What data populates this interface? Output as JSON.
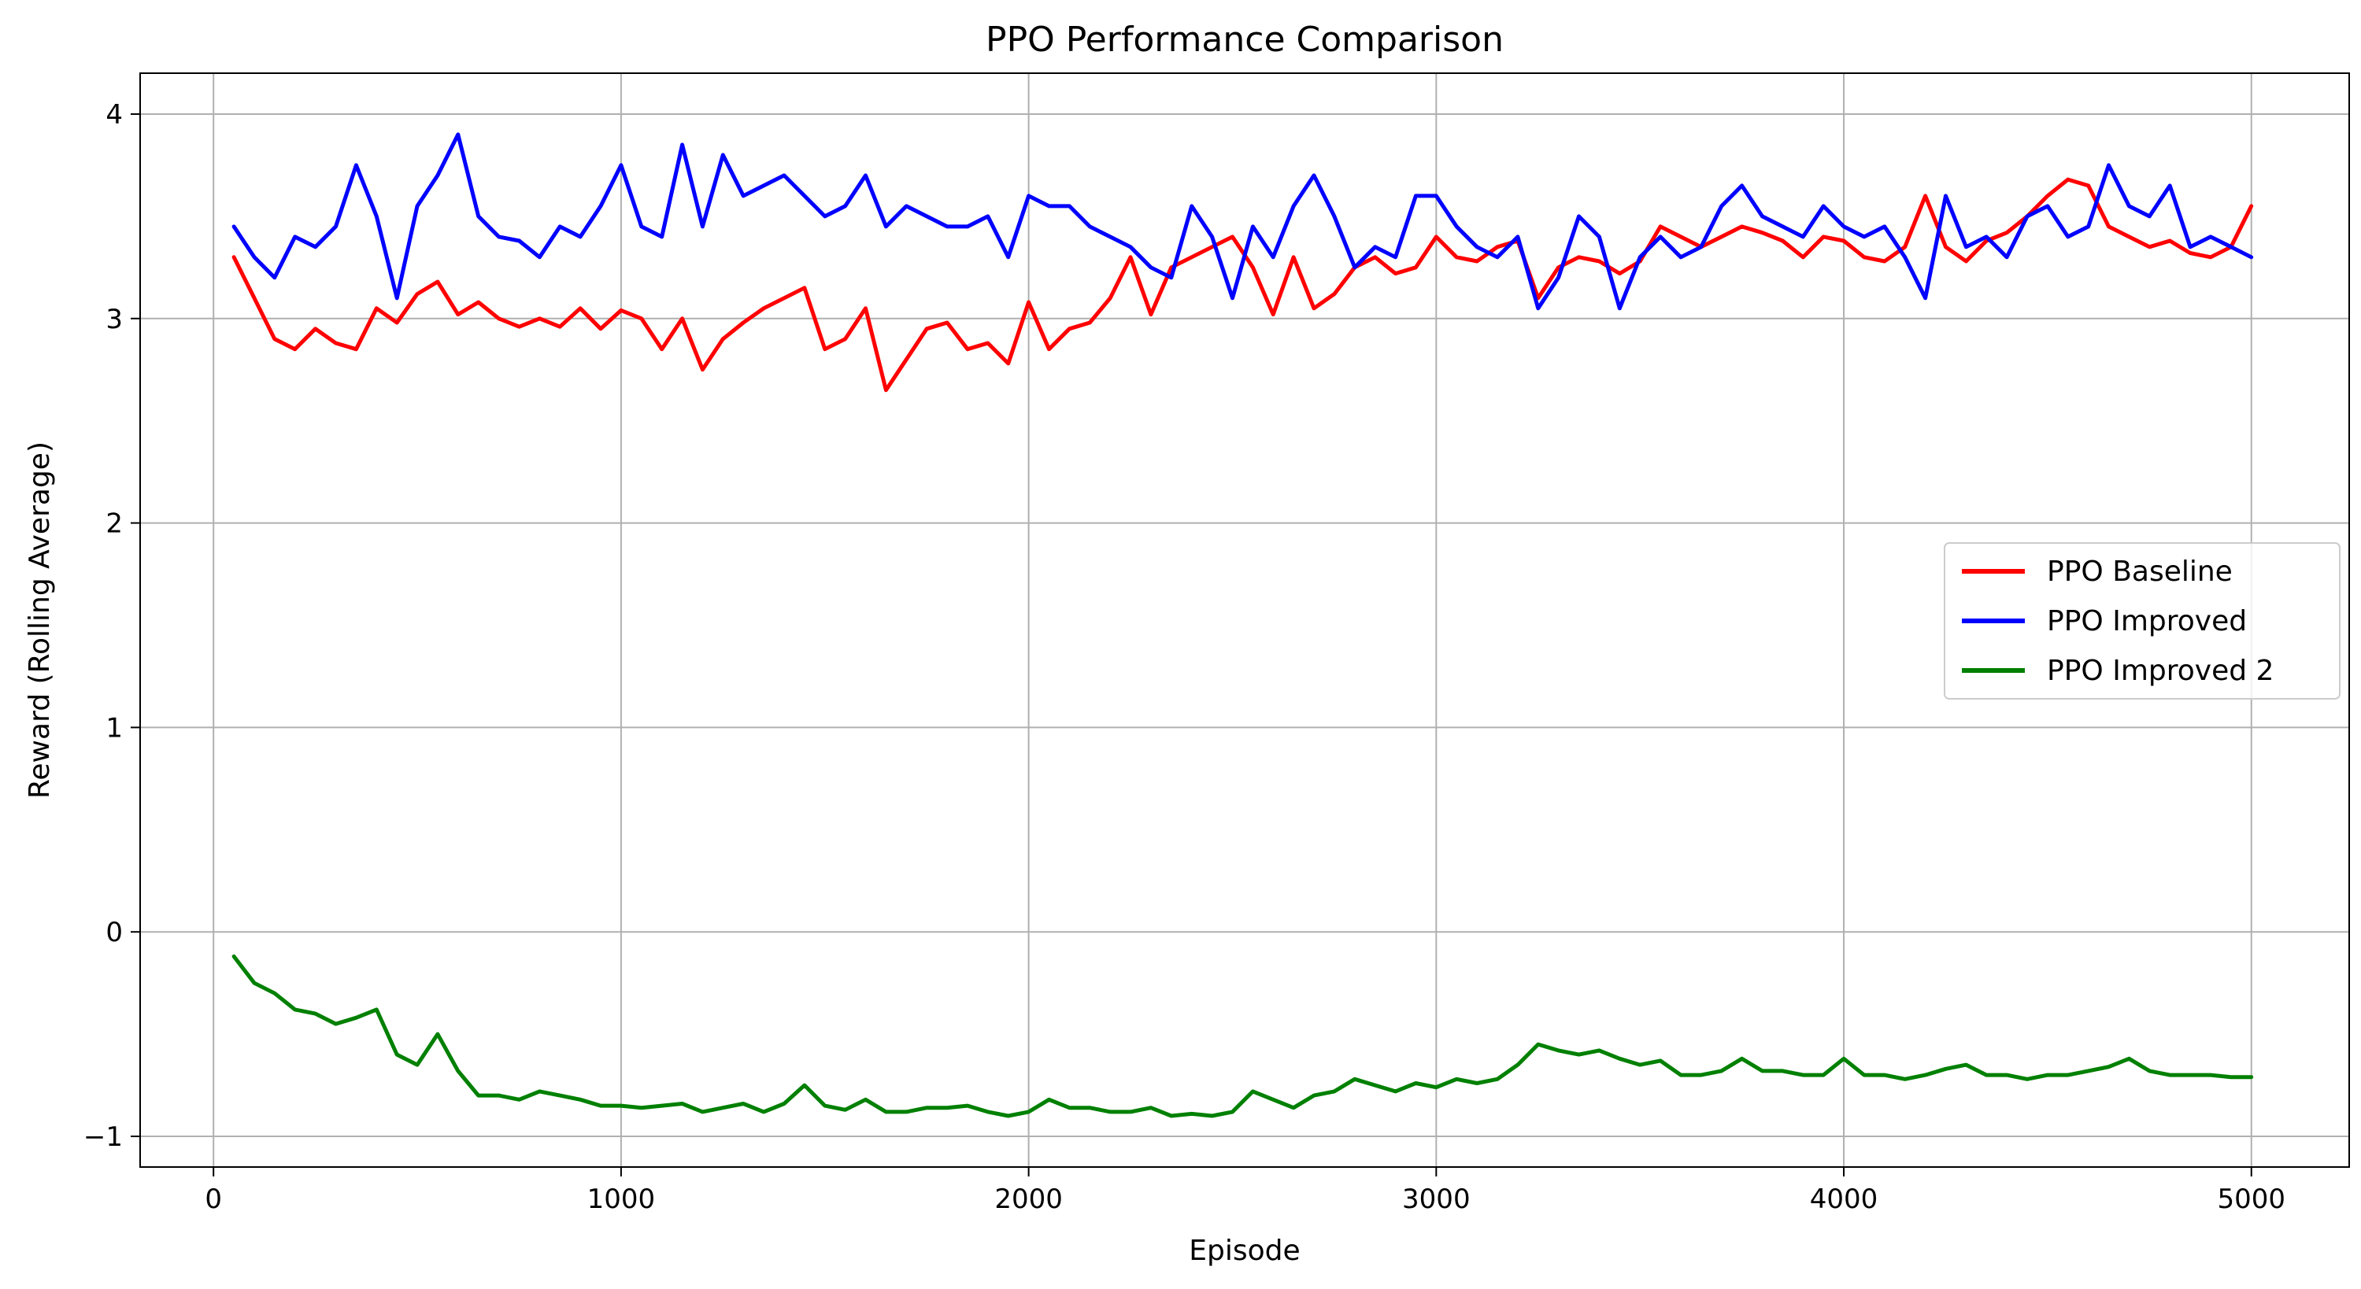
{
  "chart_data": {
    "type": "line",
    "title": "PPO Performance Comparison",
    "xlabel": "Episode",
    "ylabel": "Reward (Rolling Average)",
    "xlim": [
      -180,
      5240
    ],
    "ylim": [
      -1.15,
      4.2
    ],
    "xticks": [
      0,
      1000,
      2000,
      3000,
      4000,
      5000
    ],
    "yticks": [
      -1,
      0,
      1,
      2,
      3,
      4
    ],
    "xtick_labels": [
      "0",
      "1000",
      "2000",
      "3000",
      "4000",
      "5000"
    ],
    "ytick_labels": [
      "−1",
      "0",
      "1",
      "2",
      "3",
      "4"
    ],
    "grid": true,
    "legend_position": "center-right",
    "series": [
      {
        "name": "PPO Baseline",
        "color": "#ff0000",
        "x": [
          50,
          100,
          150,
          200,
          250,
          300,
          350,
          400,
          450,
          500,
          550,
          600,
          650,
          700,
          750,
          800,
          850,
          900,
          950,
          1000,
          1050,
          1100,
          1150,
          1200,
          1250,
          1300,
          1350,
          1400,
          1450,
          1500,
          1550,
          1600,
          1650,
          1700,
          1750,
          1800,
          1850,
          1900,
          1950,
          2000,
          2050,
          2100,
          2150,
          2200,
          2250,
          2300,
          2350,
          2400,
          2450,
          2500,
          2550,
          2600,
          2650,
          2700,
          2750,
          2800,
          2850,
          2900,
          2950,
          3000,
          3050,
          3100,
          3150,
          3200,
          3250,
          3300,
          3350,
          3400,
          3450,
          3500,
          3550,
          3600,
          3650,
          3700,
          3750,
          3800,
          3850,
          3900,
          3950,
          4000,
          4050,
          4100,
          4150,
          4200,
          4250,
          4300,
          4350,
          4400,
          4450,
          4500,
          4550,
          4600,
          4650,
          4700,
          4750,
          4800,
          4850,
          4900,
          4950,
          5000
        ],
        "y": [
          3.3,
          3.1,
          2.9,
          2.85,
          2.95,
          2.88,
          2.85,
          3.05,
          2.98,
          3.12,
          3.18,
          3.02,
          3.08,
          3.0,
          2.96,
          3.0,
          2.96,
          3.05,
          2.95,
          3.04,
          3.0,
          2.85,
          3.0,
          2.75,
          2.9,
          2.98,
          3.05,
          3.1,
          3.15,
          2.85,
          2.9,
          3.05,
          2.65,
          2.8,
          2.95,
          2.98,
          2.85,
          2.88,
          2.78,
          3.08,
          2.85,
          2.95,
          2.98,
          3.1,
          3.3,
          3.02,
          3.25,
          3.3,
          3.35,
          3.4,
          3.25,
          3.02,
          3.3,
          3.05,
          3.12,
          3.25,
          3.3,
          3.22,
          3.25,
          3.4,
          3.3,
          3.28,
          3.35,
          3.38,
          3.1,
          3.25,
          3.3,
          3.28,
          3.22,
          3.28,
          3.45,
          3.4,
          3.35,
          3.4,
          3.45,
          3.42,
          3.38,
          3.3,
          3.4,
          3.38,
          3.3,
          3.28,
          3.35,
          3.6,
          3.35,
          3.28,
          3.38,
          3.42,
          3.5,
          3.6,
          3.68,
          3.65,
          3.45,
          3.4,
          3.35,
          3.38,
          3.32,
          3.3,
          3.35,
          3.55
        ]
      },
      {
        "name": "PPO Improved",
        "color": "#0000ff",
        "x": [
          50,
          100,
          150,
          200,
          250,
          300,
          350,
          400,
          450,
          500,
          550,
          600,
          650,
          700,
          750,
          800,
          850,
          900,
          950,
          1000,
          1050,
          1100,
          1150,
          1200,
          1250,
          1300,
          1350,
          1400,
          1450,
          1500,
          1550,
          1600,
          1650,
          1700,
          1750,
          1800,
          1850,
          1900,
          1950,
          2000,
          2050,
          2100,
          2150,
          2200,
          2250,
          2300,
          2350,
          2400,
          2450,
          2500,
          2550,
          2600,
          2650,
          2700,
          2750,
          2800,
          2850,
          2900,
          2950,
          3000,
          3050,
          3100,
          3150,
          3200,
          3250,
          3300,
          3350,
          3400,
          3450,
          3500,
          3550,
          3600,
          3650,
          3700,
          3750,
          3800,
          3850,
          3900,
          3950,
          4000,
          4050,
          4100,
          4150,
          4200,
          4250,
          4300,
          4350,
          4400,
          4450,
          4500,
          4550,
          4600,
          4650,
          4700,
          4750,
          4800,
          4850,
          4900,
          4950,
          5000
        ],
        "y": [
          3.45,
          3.3,
          3.2,
          3.4,
          3.35,
          3.45,
          3.75,
          3.5,
          3.1,
          3.55,
          3.7,
          3.9,
          3.5,
          3.4,
          3.38,
          3.3,
          3.45,
          3.4,
          3.55,
          3.75,
          3.45,
          3.4,
          3.85,
          3.45,
          3.8,
          3.6,
          3.65,
          3.7,
          3.6,
          3.5,
          3.55,
          3.7,
          3.45,
          3.55,
          3.5,
          3.45,
          3.45,
          3.5,
          3.3,
          3.6,
          3.55,
          3.55,
          3.45,
          3.4,
          3.35,
          3.25,
          3.2,
          3.55,
          3.4,
          3.1,
          3.45,
          3.3,
          3.55,
          3.7,
          3.5,
          3.25,
          3.35,
          3.3,
          3.6,
          3.6,
          3.45,
          3.35,
          3.3,
          3.4,
          3.05,
          3.2,
          3.5,
          3.4,
          3.05,
          3.3,
          3.4,
          3.3,
          3.35,
          3.55,
          3.65,
          3.5,
          3.45,
          3.4,
          3.55,
          3.45,
          3.4,
          3.45,
          3.3,
          3.1,
          3.6,
          3.35,
          3.4,
          3.3,
          3.5,
          3.55,
          3.4,
          3.45,
          3.75,
          3.55,
          3.5,
          3.65,
          3.35,
          3.4,
          3.35,
          3.3
        ]
      },
      {
        "name": "PPO Improved 2",
        "color": "#008000",
        "x": [
          50,
          100,
          150,
          200,
          250,
          300,
          350,
          400,
          450,
          500,
          550,
          600,
          650,
          700,
          750,
          800,
          850,
          900,
          950,
          1000,
          1050,
          1100,
          1150,
          1200,
          1250,
          1300,
          1350,
          1400,
          1450,
          1500,
          1550,
          1600,
          1650,
          1700,
          1750,
          1800,
          1850,
          1900,
          1950,
          2000,
          2050,
          2100,
          2150,
          2200,
          2250,
          2300,
          2350,
          2400,
          2450,
          2500,
          2550,
          2600,
          2650,
          2700,
          2750,
          2800,
          2850,
          2900,
          2950,
          3000,
          3050,
          3100,
          3150,
          3200,
          3250,
          3300,
          3350,
          3400,
          3450,
          3500,
          3550,
          3600,
          3650,
          3700,
          3750,
          3800,
          3850,
          3900,
          3950,
          4000,
          4050,
          4100,
          4150,
          4200,
          4250,
          4300,
          4350,
          4400,
          4450,
          4500,
          4550,
          4600,
          4650,
          4700,
          4750,
          4800,
          4850,
          4900,
          4950,
          5000
        ],
        "y": [
          -0.12,
          -0.25,
          -0.3,
          -0.38,
          -0.4,
          -0.45,
          -0.42,
          -0.38,
          -0.6,
          -0.65,
          -0.5,
          -0.68,
          -0.8,
          -0.8,
          -0.82,
          -0.78,
          -0.8,
          -0.82,
          -0.85,
          -0.85,
          -0.86,
          -0.85,
          -0.84,
          -0.88,
          -0.86,
          -0.84,
          -0.88,
          -0.84,
          -0.75,
          -0.85,
          -0.87,
          -0.82,
          -0.88,
          -0.88,
          -0.86,
          -0.86,
          -0.85,
          -0.88,
          -0.9,
          -0.88,
          -0.82,
          -0.86,
          -0.86,
          -0.88,
          -0.88,
          -0.86,
          -0.9,
          -0.89,
          -0.9,
          -0.88,
          -0.78,
          -0.82,
          -0.86,
          -0.8,
          -0.78,
          -0.72,
          -0.75,
          -0.78,
          -0.74,
          -0.76,
          -0.72,
          -0.74,
          -0.72,
          -0.65,
          -0.55,
          -0.58,
          -0.6,
          -0.58,
          -0.62,
          -0.65,
          -0.63,
          -0.7,
          -0.7,
          -0.68,
          -0.62,
          -0.68,
          -0.68,
          -0.7,
          -0.7,
          -0.62,
          -0.7,
          -0.7,
          -0.72,
          -0.7,
          -0.67,
          -0.65,
          -0.7,
          -0.7,
          -0.72,
          -0.7,
          -0.7,
          -0.68,
          -0.66,
          -0.62,
          -0.68,
          -0.7,
          -0.7,
          -0.7,
          -0.71,
          -0.71
        ]
      }
    ]
  }
}
